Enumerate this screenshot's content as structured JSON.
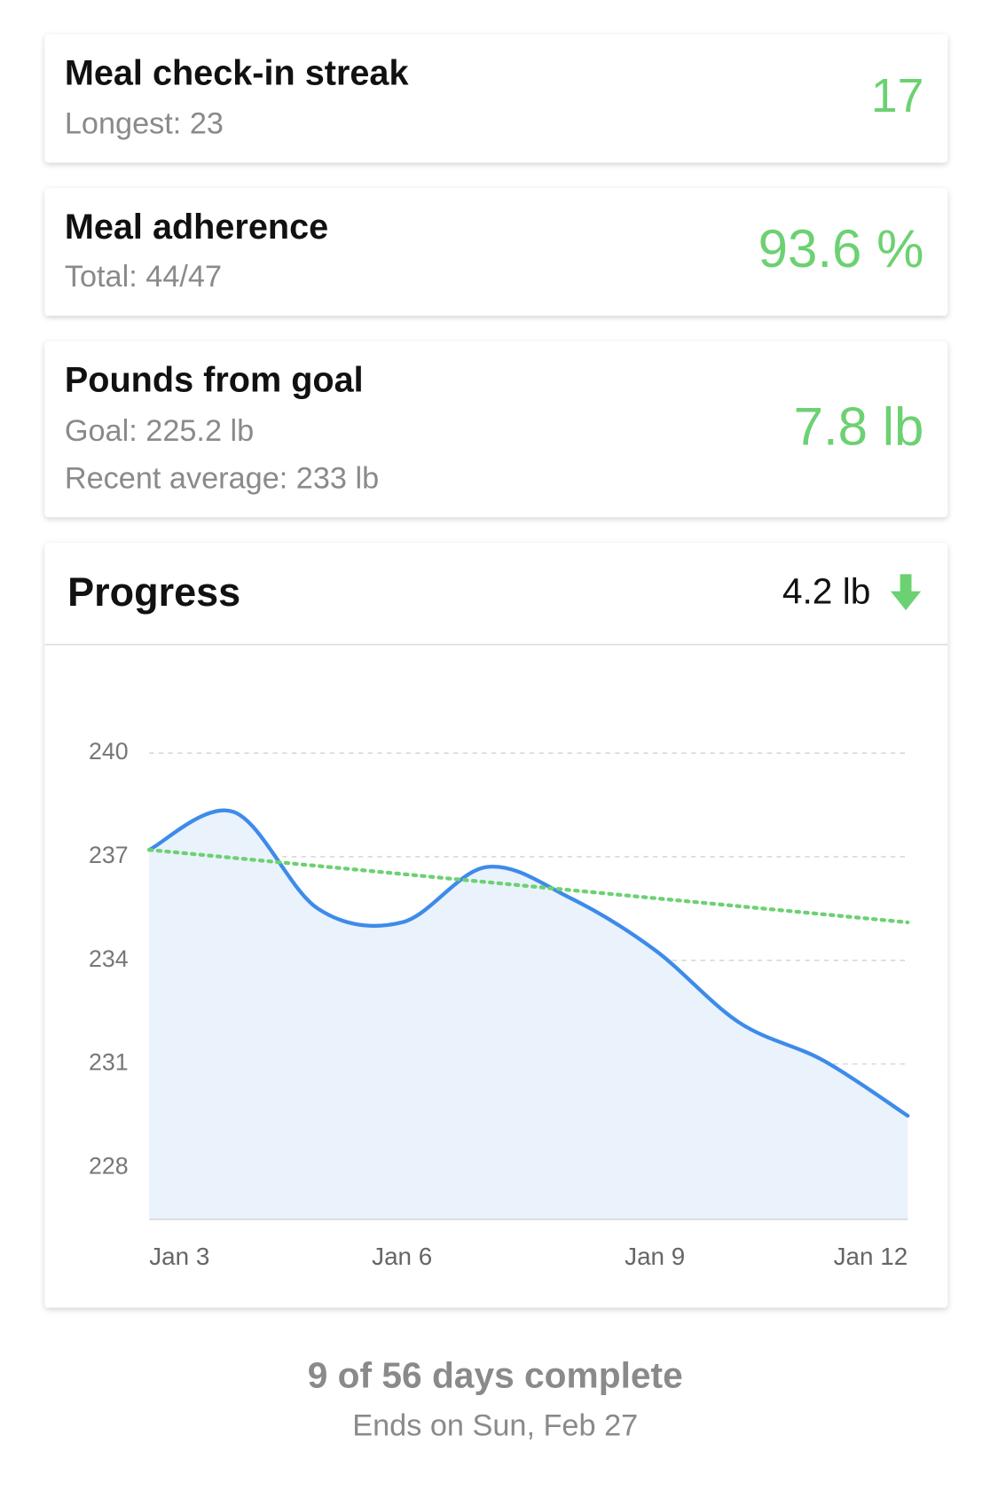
{
  "cards": [
    {
      "title": "Meal check-in streak",
      "lines": [
        "Longest: 23"
      ],
      "value": "17"
    },
    {
      "title": "Meal adherence",
      "lines": [
        "Total: 44/47"
      ],
      "value": "93.6 %"
    },
    {
      "title": "Pounds from goal",
      "lines": [
        "Goal: 225.2 lb",
        "Recent average: 233 lb"
      ],
      "value": "7.8 lb"
    }
  ],
  "progress": {
    "title": "Progress",
    "change": "4.2 lb"
  },
  "chart_data": {
    "type": "line",
    "categories": [
      "Jan 3",
      null,
      null,
      "Jan 6",
      null,
      null,
      "Jan 9",
      null,
      null,
      "Jan 12"
    ],
    "series": [
      {
        "color": "#3d8bea",
        "values": [
          237.2,
          238.3,
          235.5,
          235.1,
          236.7,
          235.8,
          234.3,
          232.2,
          231.1,
          229.5
        ]
      }
    ],
    "trend": {
      "color": "#6cd172",
      "values": [
        237.2,
        235.1
      ]
    },
    "ylim": [
      226.5,
      241
    ],
    "yticks": [
      228,
      231,
      234,
      237,
      240
    ],
    "grid": true
  },
  "footer": {
    "summary": "9 of 56 days complete",
    "ends": "Ends on Sun, Feb 27"
  }
}
